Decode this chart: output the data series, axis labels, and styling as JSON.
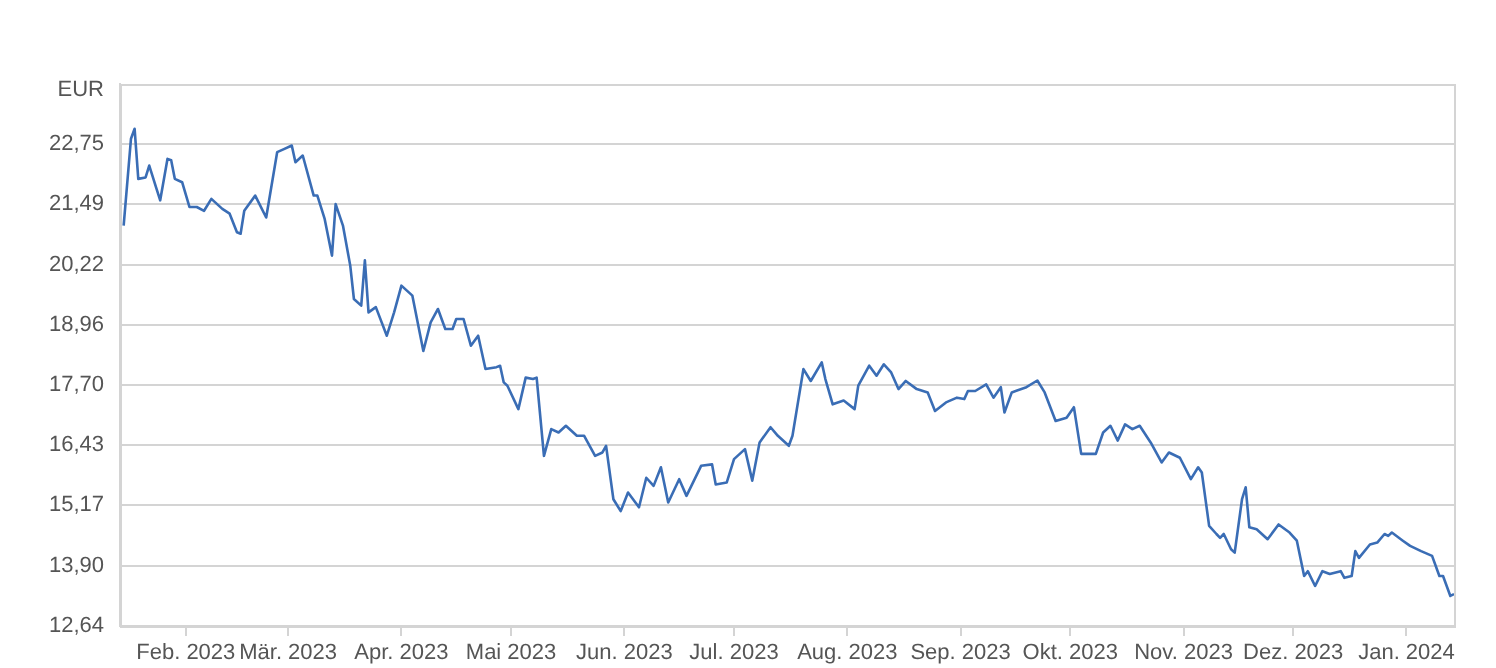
{
  "chart_data": {
    "type": "line",
    "ylabel": "EUR",
    "legend": false,
    "grid": "y",
    "marker": "none",
    "line_style": "solid",
    "xlim": [
      "2023-01-14",
      "2024-01-14"
    ],
    "xticks": [
      {
        "value": "2023-02-01",
        "label": "Feb. 2023"
      },
      {
        "value": "2023-03-01",
        "label": "Mär. 2023"
      },
      {
        "value": "2023-04-01",
        "label": "Apr. 2023"
      },
      {
        "value": "2023-05-01",
        "label": "Mai 2023"
      },
      {
        "value": "2023-06-01",
        "label": "Jun. 2023"
      },
      {
        "value": "2023-07-01",
        "label": "Jul. 2023"
      },
      {
        "value": "2023-08-01",
        "label": "Aug. 2023"
      },
      {
        "value": "2023-09-01",
        "label": "Sep. 2023"
      },
      {
        "value": "2023-10-01",
        "label": "Okt. 2023"
      },
      {
        "value": "2023-11-01",
        "label": "Nov. 2023"
      },
      {
        "value": "2023-12-01",
        "label": "Dez. 2023"
      },
      {
        "value": "2024-01-01",
        "label": "Jan. 2024"
      }
    ],
    "ylim": [
      12.64,
      24.01
    ],
    "yticks": [
      {
        "value": 12.64,
        "label": "12,64"
      },
      {
        "value": 13.9,
        "label": "13,90"
      },
      {
        "value": 15.17,
        "label": "15,17"
      },
      {
        "value": 16.43,
        "label": "16,43"
      },
      {
        "value": 17.7,
        "label": "17,70"
      },
      {
        "value": 18.96,
        "label": "18,96"
      },
      {
        "value": 20.22,
        "label": "20,22"
      },
      {
        "value": 21.49,
        "label": "21,49"
      },
      {
        "value": 22.75,
        "label": "22,75"
      }
    ],
    "x": [
      "2023-01-15",
      "2023-01-17",
      "2023-01-18",
      "2023-01-19",
      "2023-01-21",
      "2023-01-22",
      "2023-01-24",
      "2023-01-25",
      "2023-01-27",
      "2023-01-28",
      "2023-01-29",
      "2023-01-31",
      "2023-02-02",
      "2023-02-04",
      "2023-02-06",
      "2023-02-08",
      "2023-02-11",
      "2023-02-13",
      "2023-02-15",
      "2023-02-16",
      "2023-02-17",
      "2023-02-20",
      "2023-02-23",
      "2023-02-26",
      "2023-02-28",
      "2023-03-02",
      "2023-03-03",
      "2023-03-05",
      "2023-03-08",
      "2023-03-09",
      "2023-03-11",
      "2023-03-13",
      "2023-03-14",
      "2023-03-16",
      "2023-03-18",
      "2023-03-19",
      "2023-03-21",
      "2023-03-22",
      "2023-03-23",
      "2023-03-25",
      "2023-03-28",
      "2023-03-30",
      "2023-04-01",
      "2023-04-04",
      "2023-04-07",
      "2023-04-09",
      "2023-04-11",
      "2023-04-13",
      "2023-04-15",
      "2023-04-16",
      "2023-04-18",
      "2023-04-20",
      "2023-04-22",
      "2023-04-24",
      "2023-04-27",
      "2023-04-28",
      "2023-04-29",
      "2023-04-30",
      "2023-05-03",
      "2023-05-05",
      "2023-05-07",
      "2023-05-08",
      "2023-05-10",
      "2023-05-12",
      "2023-05-14",
      "2023-05-16",
      "2023-05-19",
      "2023-05-21",
      "2023-05-24",
      "2023-05-26",
      "2023-05-27",
      "2023-05-29",
      "2023-05-31",
      "2023-06-02",
      "2023-06-05",
      "2023-06-07",
      "2023-06-09",
      "2023-06-11",
      "2023-06-13",
      "2023-06-16",
      "2023-06-18",
      "2023-06-22",
      "2023-06-25",
      "2023-06-26",
      "2023-06-29",
      "2023-07-01",
      "2023-07-04",
      "2023-07-06",
      "2023-07-08",
      "2023-07-11",
      "2023-07-13",
      "2023-07-16",
      "2023-07-17",
      "2023-07-20",
      "2023-07-22",
      "2023-07-25",
      "2023-07-26",
      "2023-07-28",
      "2023-07-31",
      "2023-08-03",
      "2023-08-04",
      "2023-08-07",
      "2023-08-09",
      "2023-08-11",
      "2023-08-13",
      "2023-08-15",
      "2023-08-17",
      "2023-08-20",
      "2023-08-23",
      "2023-08-25",
      "2023-08-28",
      "2023-08-31",
      "2023-09-02",
      "2023-09-03",
      "2023-09-05",
      "2023-09-08",
      "2023-09-10",
      "2023-09-12",
      "2023-09-13",
      "2023-09-15",
      "2023-09-19",
      "2023-09-22",
      "2023-09-24",
      "2023-09-27",
      "2023-09-30",
      "2023-10-02",
      "2023-10-04",
      "2023-10-08",
      "2023-10-10",
      "2023-10-12",
      "2023-10-14",
      "2023-10-16",
      "2023-10-18",
      "2023-10-20",
      "2023-10-23",
      "2023-10-26",
      "2023-10-28",
      "2023-10-31",
      "2023-11-03",
      "2023-11-05",
      "2023-11-06",
      "2023-11-08",
      "2023-11-10",
      "2023-11-11",
      "2023-11-12",
      "2023-11-14",
      "2023-11-15",
      "2023-11-17",
      "2023-11-18",
      "2023-11-19",
      "2023-11-21",
      "2023-11-24",
      "2023-11-27",
      "2023-11-30",
      "2023-12-02",
      "2023-12-04",
      "2023-12-05",
      "2023-12-07",
      "2023-12-09",
      "2023-12-11",
      "2023-12-14",
      "2023-12-15",
      "2023-12-17",
      "2023-12-18",
      "2023-12-19",
      "2023-12-22",
      "2023-12-24",
      "2023-12-26",
      "2023-12-27",
      "2023-12-28",
      "2023-12-31",
      "2024-01-02",
      "2024-01-05",
      "2024-01-08",
      "2024-01-10",
      "2024-01-11",
      "2024-01-13",
      "2024-01-14"
    ],
    "series": [
      {
        "color": "#3a6db5",
        "values": [
          21.04,
          22.86,
          23.07,
          22.02,
          22.05,
          22.3,
          21.81,
          21.57,
          22.44,
          22.41,
          22.02,
          21.95,
          21.43,
          21.43,
          21.35,
          21.6,
          21.39,
          21.29,
          20.9,
          20.87,
          21.35,
          21.67,
          21.21,
          22.58,
          22.65,
          22.72,
          22.37,
          22.51,
          21.67,
          21.67,
          21.18,
          20.41,
          21.49,
          21.04,
          20.2,
          19.5,
          19.36,
          20.31,
          19.22,
          19.33,
          18.73,
          19.22,
          19.78,
          19.57,
          18.41,
          19.01,
          19.29,
          18.87,
          18.87,
          19.08,
          19.08,
          18.52,
          18.73,
          18.03,
          18.07,
          18.1,
          17.75,
          17.68,
          17.19,
          17.85,
          17.82,
          17.85,
          16.21,
          16.77,
          16.7,
          16.84,
          16.63,
          16.63,
          16.21,
          16.28,
          16.42,
          15.3,
          15.05,
          15.44,
          15.13,
          15.75,
          15.58,
          15.97,
          15.23,
          15.72,
          15.37,
          16.0,
          16.03,
          15.61,
          15.65,
          16.14,
          16.35,
          15.69,
          16.49,
          16.81,
          16.63,
          16.42,
          16.63,
          18.03,
          17.78,
          18.17,
          17.82,
          17.29,
          17.37,
          17.19,
          17.68,
          18.1,
          17.89,
          18.13,
          17.96,
          17.61,
          17.78,
          17.61,
          17.54,
          17.15,
          17.33,
          17.43,
          17.4,
          17.57,
          17.57,
          17.71,
          17.43,
          17.65,
          17.12,
          17.54,
          17.65,
          17.79,
          17.54,
          16.94,
          17.01,
          17.23,
          16.25,
          16.25,
          16.7,
          16.84,
          16.53,
          16.87,
          16.77,
          16.84,
          16.49,
          16.07,
          16.28,
          16.17,
          15.72,
          15.97,
          15.86,
          14.74,
          14.57,
          14.49,
          14.57,
          14.25,
          14.18,
          15.3,
          15.55,
          14.71,
          14.67,
          14.46,
          14.77,
          14.6,
          14.43,
          13.69,
          13.79,
          13.48,
          13.79,
          13.73,
          13.79,
          13.65,
          13.69,
          14.21,
          14.07,
          14.35,
          14.39,
          14.57,
          14.53,
          14.6,
          14.43,
          14.32,
          14.21,
          14.11,
          13.69,
          13.69,
          13.27,
          13.31
        ]
      }
    ]
  }
}
